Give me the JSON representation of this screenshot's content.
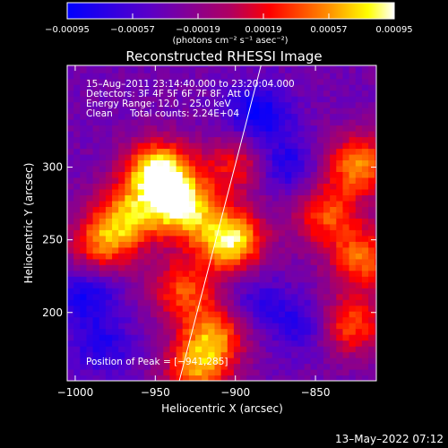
{
  "chart_data": {
    "type": "heatmap",
    "title": "Reconstructed RHESSI Image",
    "xlabel": "Heliocentric X (arcsec)",
    "ylabel": "Heliocentric Y (arcsec)",
    "xlim": [
      -1005,
      -812
    ],
    "ylim": [
      153,
      370
    ],
    "x_ticks": [
      -1000,
      -950,
      -900,
      -850
    ],
    "x_tick_labels": [
      "−1000",
      "−950",
      "−900",
      "−850"
    ],
    "y_ticks": [
      200,
      250,
      300
    ],
    "y_tick_labels": [
      "200",
      "250",
      "300"
    ],
    "colorbar": {
      "range": [
        -0.00095,
        0.00095
      ],
      "ticks": [
        -0.00095,
        -0.00057,
        -0.00019,
        0.00019,
        0.00057,
        0.00095
      ],
      "tick_labels": [
        "−0.00095",
        "−0.00057",
        "−0.00019",
        "0.00019",
        "0.00057",
        "0.00095"
      ],
      "units_label": "(photons cm⁻² s⁻¹ asec⁻²)",
      "colormap": [
        "#0000ff",
        "#5a00c8",
        "#ff0000",
        "#ff8000",
        "#ffff00",
        "#ffffff"
      ]
    },
    "annotations": {
      "time_range": "15–Aug–2011 23:14:40.000 to 23:20:04.000",
      "detectors": "Detectors: 3F 4F 5F 6F 7F 8F, Att 0",
      "energy_range": "Energy Range: 12.0 – 25.0 keV",
      "method": "Clean",
      "total_counts": "Total counts: 2.24E+04",
      "peak_position": "Position of Peak = [−941,285]"
    },
    "limb_line": {
      "x": [
        -935,
        -884
      ],
      "y": [
        153,
        370
      ]
    },
    "sources": [
      {
        "x": -950,
        "y": 295,
        "intensity": 0.00095
      },
      {
        "x": -935,
        "y": 270,
        "intensity": 0.00075
      },
      {
        "x": -905,
        "y": 248,
        "intensity": 0.00085
      },
      {
        "x": -970,
        "y": 265,
        "intensity": 0.00045
      },
      {
        "x": -985,
        "y": 245,
        "intensity": 0.0004
      },
      {
        "x": -915,
        "y": 185,
        "intensity": 0.00045
      },
      {
        "x": -925,
        "y": 160,
        "intensity": 0.0005
      },
      {
        "x": -935,
        "y": 215,
        "intensity": 0.00035
      },
      {
        "x": -825,
        "y": 300,
        "intensity": 0.00055
      },
      {
        "x": -822,
        "y": 235,
        "intensity": 0.00045
      },
      {
        "x": -830,
        "y": 190,
        "intensity": 0.0004
      },
      {
        "x": -845,
        "y": 265,
        "intensity": 0.00035
      },
      {
        "x": -900,
        "y": 300,
        "intensity": 0.00025
      }
    ],
    "negative_regions": [
      {
        "x": -888,
        "y": 335,
        "intensity": -0.0006
      },
      {
        "x": -872,
        "y": 300,
        "intensity": -0.0005
      },
      {
        "x": -995,
        "y": 210,
        "intensity": -0.0005
      },
      {
        "x": -985,
        "y": 175,
        "intensity": -0.0004
      },
      {
        "x": -860,
        "y": 190,
        "intensity": -0.0004
      },
      {
        "x": -890,
        "y": 205,
        "intensity": -0.00035
      }
    ]
  },
  "footer": {
    "date": "13–May–2022 07:12"
  }
}
